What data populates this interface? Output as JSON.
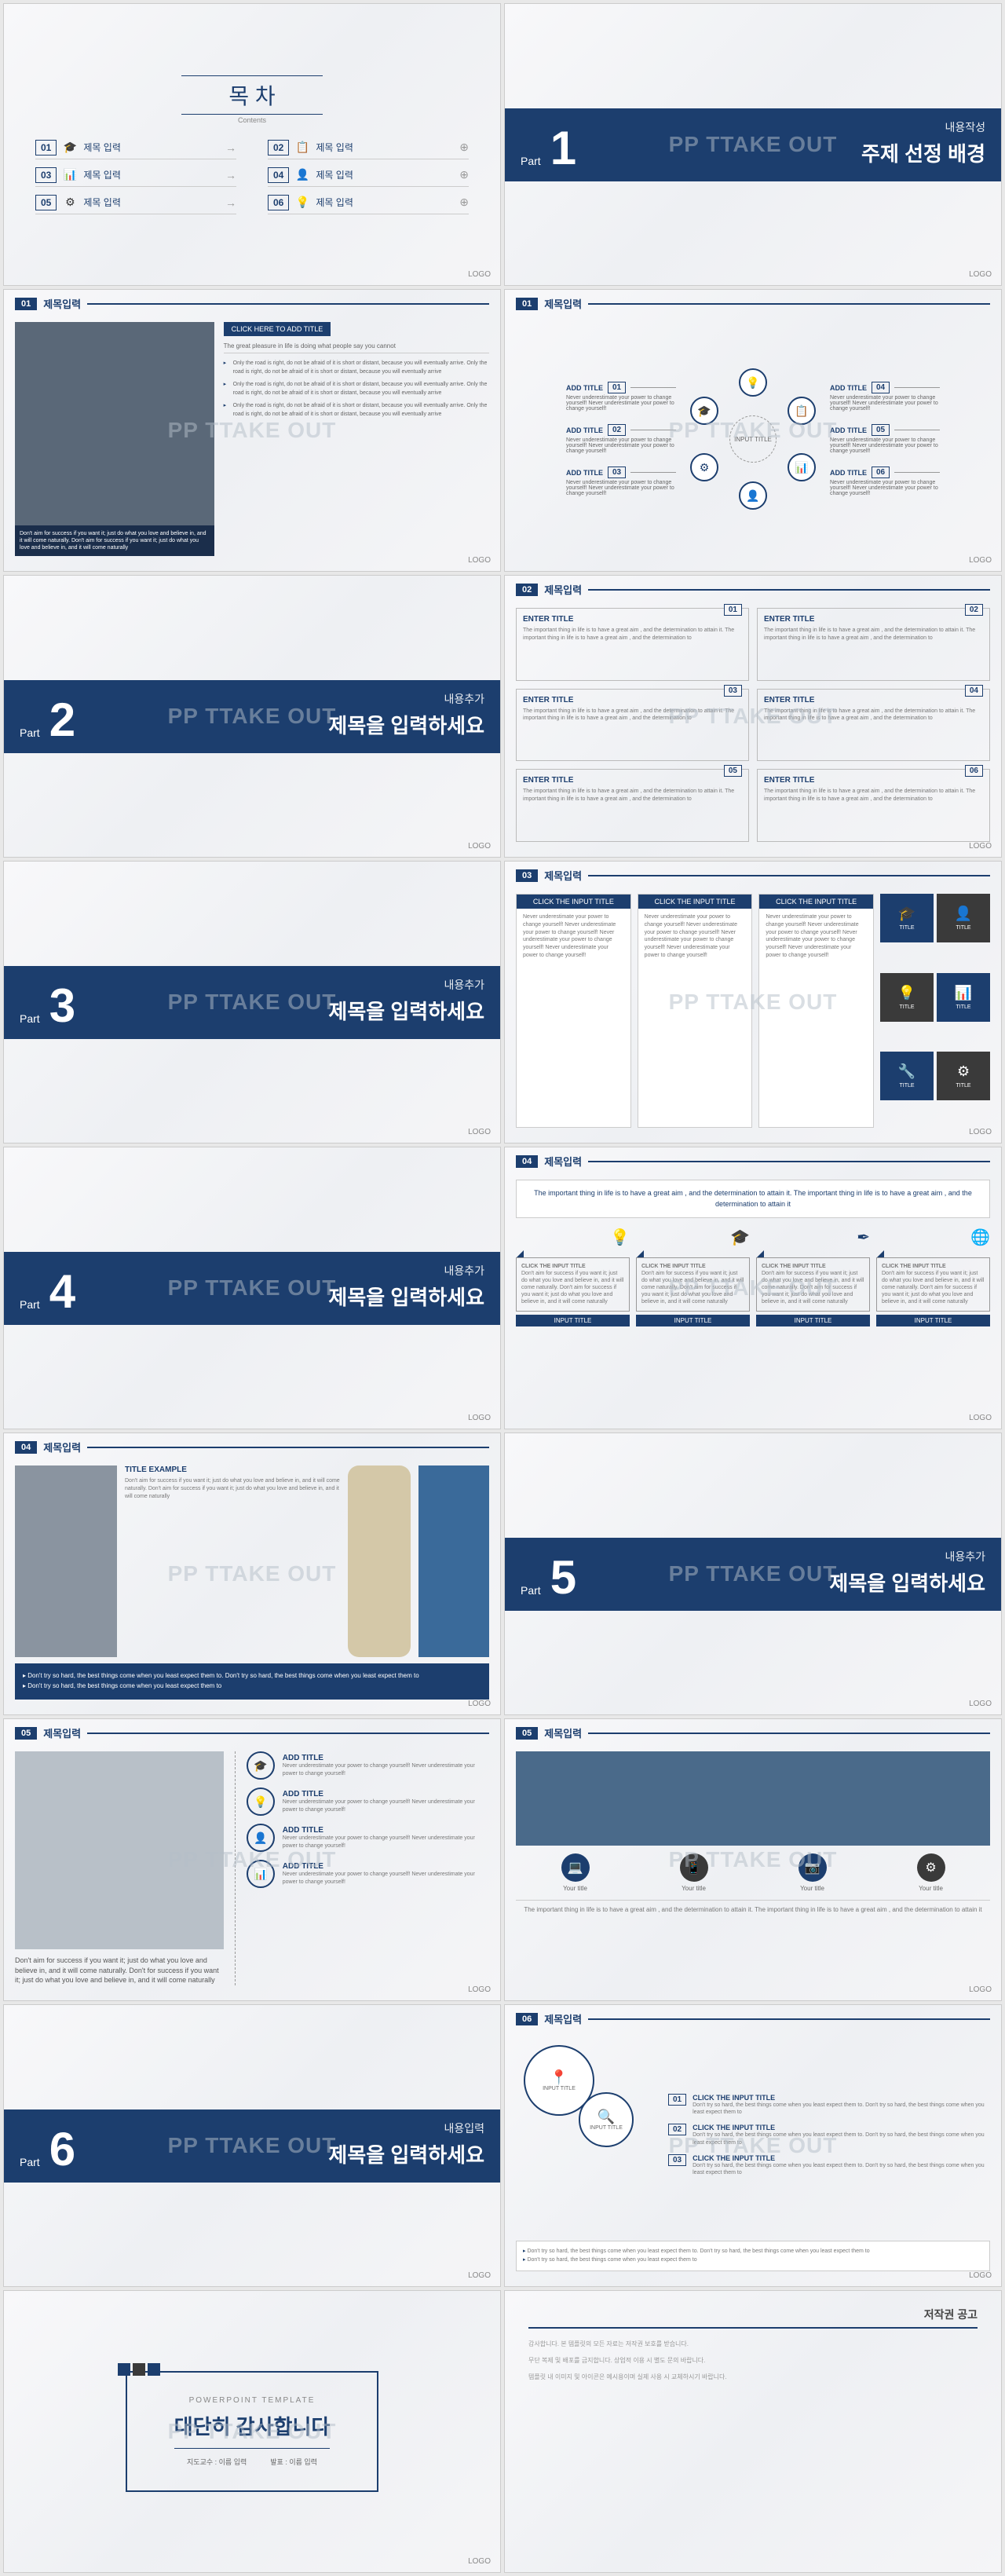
{
  "watermark": "PP TTAKE OUT",
  "logo": "LOGO",
  "colors": {
    "primary": "#1c3e6e",
    "dark": "#3a3a3a",
    "bg": "#f5f5f7",
    "text": "#666"
  },
  "contents": {
    "title": "목 차",
    "subtitle": "Contents",
    "items": [
      {
        "num": "01",
        "icon": "🎓",
        "label": "제목 입력"
      },
      {
        "num": "02",
        "icon": "📋",
        "label": "제목 입력"
      },
      {
        "num": "03",
        "icon": "📊",
        "label": "제목 입력"
      },
      {
        "num": "04",
        "icon": "👤",
        "label": "제목 입력"
      },
      {
        "num": "05",
        "icon": "⚙",
        "label": "제목 입력"
      },
      {
        "num": "06",
        "icon": "💡",
        "label": "제목 입력"
      }
    ]
  },
  "parts": [
    {
      "num": "1",
      "sub": "내용작성",
      "title": "주제 선정 배경"
    },
    {
      "num": "2",
      "sub": "내용추가",
      "title": "제목을 입력하세요"
    },
    {
      "num": "3",
      "sub": "내용추가",
      "title": "제목을 입력하세요"
    },
    {
      "num": "4",
      "sub": "내용추가",
      "title": "제목을 입력하세요"
    },
    {
      "num": "5",
      "sub": "내용추가",
      "title": "제목을 입력하세요"
    },
    {
      "num": "6",
      "sub": "내용입력",
      "title": "제목을 입력하세요"
    }
  ],
  "part_label": "Part",
  "slide3": {
    "hdr": {
      "num": "01",
      "title": "제목입력"
    },
    "badge": "CLICK HERE TO ADD TITLE",
    "quote": "The great pleasure in life is doing what people say you cannot",
    "caption": "Don't aim for success if you want it; just do what you love and believe in, and it will come naturally. Don't aim for success if you want it; just do what you love and believe in, and it will come naturally",
    "bullets": [
      "Only the road is right, do not be afraid of it is short or distant, because you will eventually arrive. Only the road is right, do not be afraid of it is short or distant, because you will eventually arrive",
      "Only the road is right, do not be afraid of it is short or distant, because you will eventually arrive. Only the road is right, do not be afraid of it is short or distant, because you will eventually arrive",
      "Only the road is right, do not be afraid of it is short or distant, because you will eventually arrive. Only the road is right, do not be afraid of it is short or distant, because you will eventually arrive"
    ]
  },
  "slide4": {
    "hdr": {
      "num": "01",
      "title": "제목입력"
    },
    "core": "INPUT TITLE",
    "nodes": [
      {
        "icon": "💡",
        "pos": "top"
      },
      {
        "icon": "🎓",
        "pos": "tl"
      },
      {
        "icon": "📋",
        "pos": "tr"
      },
      {
        "icon": "⚙",
        "pos": "bl"
      },
      {
        "icon": "📊",
        "pos": "br"
      },
      {
        "icon": "👤",
        "pos": "bottom"
      }
    ],
    "boxes": [
      {
        "num": "01",
        "title": "ADD TITLE",
        "text": "Never underestimate your power to change yourself! Never underestimate your power to change yourself!"
      },
      {
        "num": "02",
        "title": "ADD TITLE",
        "text": "Never underestimate your power to change yourself! Never underestimate your power to change yourself!"
      },
      {
        "num": "03",
        "title": "ADD TITLE",
        "text": "Never underestimate your power to change yourself! Never underestimate your power to change yourself!"
      },
      {
        "num": "04",
        "title": "ADD TITLE",
        "text": "Never underestimate your power to change yourself! Never underestimate your power to change yourself!"
      },
      {
        "num": "05",
        "title": "ADD TITLE",
        "text": "Never underestimate your power to change yourself! Never underestimate your power to change yourself!"
      },
      {
        "num": "06",
        "title": "ADD TITLE",
        "text": "Never underestimate your power to change yourself! Never underestimate your power to change yourself!"
      }
    ]
  },
  "slide6": {
    "hdr": {
      "num": "02",
      "title": "제목입력"
    },
    "boxes": [
      {
        "num": "01",
        "title": "ENTER TITLE",
        "text": "The important thing in life is to have a great aim , and the determination to attain it. The important thing in life is to have a great aim , and the determination to"
      },
      {
        "num": "02",
        "title": "ENTER TITLE",
        "text": "The important thing in life is to have a great aim , and the determination to attain it. The important thing in life is to have a great aim , and the determination to"
      },
      {
        "num": "03",
        "title": "ENTER TITLE",
        "text": "The important thing in life is to have a great aim , and the determination to attain it. The important thing in life is to have a great aim , and the determination to"
      },
      {
        "num": "04",
        "title": "ENTER TITLE",
        "text": "The important thing in life is to have a great aim , and the determination to attain it. The important thing in life is to have a great aim , and the determination to"
      },
      {
        "num": "05",
        "title": "ENTER TITLE",
        "text": "The important thing in life is to have a great aim , and the determination to attain it. The important thing in life is to have a great aim , and the determination to"
      },
      {
        "num": "06",
        "title": "ENTER TITLE",
        "text": "The important thing in life is to have a great aim , and the determination to attain it. The important thing in life is to have a great aim , and the determination to"
      }
    ]
  },
  "slide8": {
    "hdr": {
      "num": "03",
      "title": "제목입력"
    },
    "col_title": "CLICK THE INPUT TITLE",
    "col_text": "Never underestimate your power to change yourself! Never underestimate your power to change yourself! Never underestimate your power to change yourself! Never underestimate your power to change yourself!",
    "icon_label": "TITLE",
    "icons": [
      {
        "icon": "🎓",
        "bg": "navy"
      },
      {
        "icon": "👤",
        "bg": "dark"
      },
      {
        "icon": "💡",
        "bg": "dark"
      },
      {
        "icon": "📊",
        "bg": "navy"
      },
      {
        "icon": "🔧",
        "bg": "navy"
      },
      {
        "icon": "⚙",
        "bg": "dark"
      }
    ]
  },
  "slide10": {
    "hdr": {
      "num": "04",
      "title": "제목입력"
    },
    "quote": "The important thing in life is to have a great aim , and the determination to attain it. The important thing in life is to have a great aim , and the determination to attain it",
    "tag": "INPUT TITLE",
    "col_title": "CLICK THE INPUT TITLE",
    "col_text": "Don't aim for success if you want it; just do what you love and believe in, and it will come naturally. Don't aim for success if you want it; just do what you love and believe in, and it will come naturally",
    "icons": [
      "💡",
      "🎓",
      "✒",
      "🌐"
    ]
  },
  "slide11": {
    "hdr": {
      "num": "04",
      "title": "제목입력"
    },
    "title": "TITLE EXAMPLE",
    "text": "Don't aim for success if you want it; just do what you love and believe in, and it will come naturally. Don't aim for success if you want it; just do what you love and believe in, and it will come naturally",
    "bullets": [
      "Don't try so hard, the best things come when you least expect them to. Don't try so hard, the best things come when you least expect them to",
      "Don't try so hard, the best things come when you least expect them to"
    ]
  },
  "slide13": {
    "hdr": {
      "num": "05",
      "title": "제목입력"
    },
    "quote": "Don't aim for success if you want it; just do what you love and believe in, and it will come naturally. Don't for success if you want it; just do what you love and believe in, and it will come naturally",
    "items": [
      {
        "icon": "🎓",
        "title": "ADD TITLE",
        "text": "Never underestimate your power to change yourself! Never underestimate your power to change yourself!"
      },
      {
        "icon": "💡",
        "title": "ADD TITLE",
        "text": "Never underestimate your power to change yourself! Never underestimate your power to change yourself!"
      },
      {
        "icon": "👤",
        "title": "ADD TITLE",
        "text": "Never underestimate your power to change yourself! Never underestimate your power to change yourself!"
      },
      {
        "icon": "📊",
        "title": "ADD TITLE",
        "text": "Never underestimate your power to change yourself! Never underestimate your power to change yourself!"
      }
    ]
  },
  "slide14": {
    "hdr": {
      "num": "05",
      "title": "제목입력"
    },
    "quote": "The important thing in life is to have a great aim , and the determination to attain it. The important thing in life is to have a great aim , and the determination to attain it",
    "icon_label": "Your title",
    "icons": [
      {
        "icon": "💻",
        "bg": "navy"
      },
      {
        "icon": "📱",
        "bg": "dark"
      },
      {
        "icon": "📷",
        "bg": "navy"
      },
      {
        "icon": "⚙",
        "bg": "dark"
      }
    ]
  },
  "slide16": {
    "hdr": {
      "num": "06",
      "title": "제목입력"
    },
    "circles": [
      {
        "icon": "📍",
        "label": "INPUT TITLE"
      },
      {
        "icon": "🔍",
        "label": "INPUT TITLE"
      }
    ],
    "items": [
      {
        "num": "01",
        "title": "CLICK THE INPUT TITLE",
        "text": "Don't try so hard, the best things come when you least expect them to. Don't try so hard, the best things come when you least expect them to"
      },
      {
        "num": "02",
        "title": "CLICK THE INPUT TITLE",
        "text": "Don't try so hard, the best things come when you least expect them to. Don't try so hard, the best things come when you least expect them to"
      },
      {
        "num": "03",
        "title": "CLICK THE INPUT TITLE",
        "text": "Don't try so hard, the best things come when you least expect them to. Don't try so hard, the best things come when you least expect them to"
      }
    ],
    "bullets": [
      "Don't try so hard, the best things come when you least expect them to. Don't try so hard, the best things come when you least expect them to",
      "Don't try so hard, the best things come when you least expect them to"
    ]
  },
  "thanks": {
    "sub": "POWERPOINT TEMPLATE",
    "title": "대단히 감사합니다",
    "credits": [
      "지도교수 : 이름 입력",
      "발표 : 이름 입력"
    ]
  },
  "copyright": {
    "title": "저작권 공고",
    "body": [
      "감사합니다. 본 템플릿의 모든 자료는 저작권 보호를 받습니다.",
      "무단 복제 및 배포를 금지합니다. 상업적 이용 시 별도 문의 바랍니다.",
      "템플릿 내 이미지 및 아이콘은 예시용이며 실제 사용 시 교체하시기 바랍니다."
    ]
  }
}
